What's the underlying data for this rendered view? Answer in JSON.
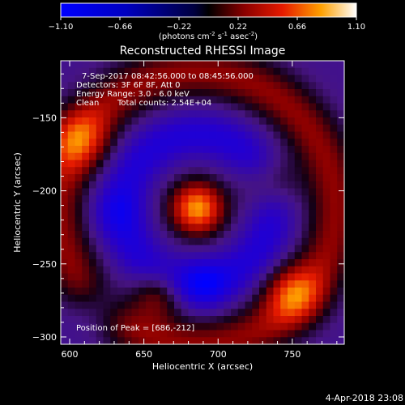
{
  "window": {
    "title": "Reconstructed RHESSI Image",
    "footer_date": "4-Apr-2018 23:08"
  },
  "colorbar": {
    "tick_labels": [
      "-1.10",
      "-0.66",
      "-0.22",
      "0.22",
      "0.66",
      "1.10"
    ],
    "units_label": "(photons cm",
    "units_exp1": "-2",
    "units_mid": " s",
    "units_exp2": "-1",
    "units_mid2": " asec",
    "units_exp3": "-2",
    "units_end": ")",
    "range": [
      -1.1,
      1.1
    ]
  },
  "info": {
    "time_range": "7-Sep-2017 08:42:56.000 to 08:45:56.000",
    "detectors": "Detectors: 3F 6F 8F, Att 0",
    "energy": "Energy Range: 3.0 - 6.0 keV",
    "algorithm": "Clean",
    "total_counts": "Total counts: 2.54E+04",
    "peak": "Position of Peak = [686,-212]"
  },
  "chart_data": {
    "type": "heatmap",
    "title": "Reconstructed RHESSI Image",
    "xlabel": "Heliocentric X (arcsec)",
    "ylabel": "Heliocentric Y (arcsec)",
    "xlim": [
      594,
      785
    ],
    "ylim": [
      -305,
      -111
    ],
    "xticks": [
      600,
      650,
      700,
      750
    ],
    "yticks": [
      -150,
      -200,
      -250,
      -300
    ],
    "zlim": [
      -1.1,
      1.1
    ],
    "colormap": "hot-blue (blue negative, black zero, red/yellow/white positive)",
    "peak": [
      686,
      -212
    ],
    "components": [
      {
        "kind": "peak",
        "x": 686,
        "y": -212,
        "amp": 1.1,
        "sigma": 13
      },
      {
        "kind": "ring",
        "x": 686,
        "y": -212,
        "radius": 93,
        "amp": 0.55,
        "width": 13
      },
      {
        "kind": "ring",
        "x": 686,
        "y": -212,
        "radius": 50,
        "amp": -0.45,
        "width": 11
      },
      {
        "kind": "blob",
        "x": 605,
        "y": -165,
        "amp": 0.55,
        "sigma": 15
      },
      {
        "kind": "blob",
        "x": 735,
        "y": -195,
        "amp": 0.5,
        "sigma": 13
      },
      {
        "kind": "blob",
        "x": 660,
        "y": -270,
        "amp": 0.5,
        "sigma": 12
      },
      {
        "kind": "blob",
        "x": 750,
        "y": -270,
        "amp": 0.6,
        "sigma": 14
      },
      {
        "kind": "blob",
        "x": 620,
        "y": -280,
        "amp": -0.35,
        "sigma": 13
      },
      {
        "kind": "blob",
        "x": 690,
        "y": -265,
        "amp": -0.4,
        "sigma": 12
      },
      {
        "kind": "blob",
        "x": 630,
        "y": -215,
        "amp": -0.25,
        "sigma": 12
      }
    ]
  },
  "colors": {
    "background": "#000000",
    "text": "#ffffff"
  }
}
